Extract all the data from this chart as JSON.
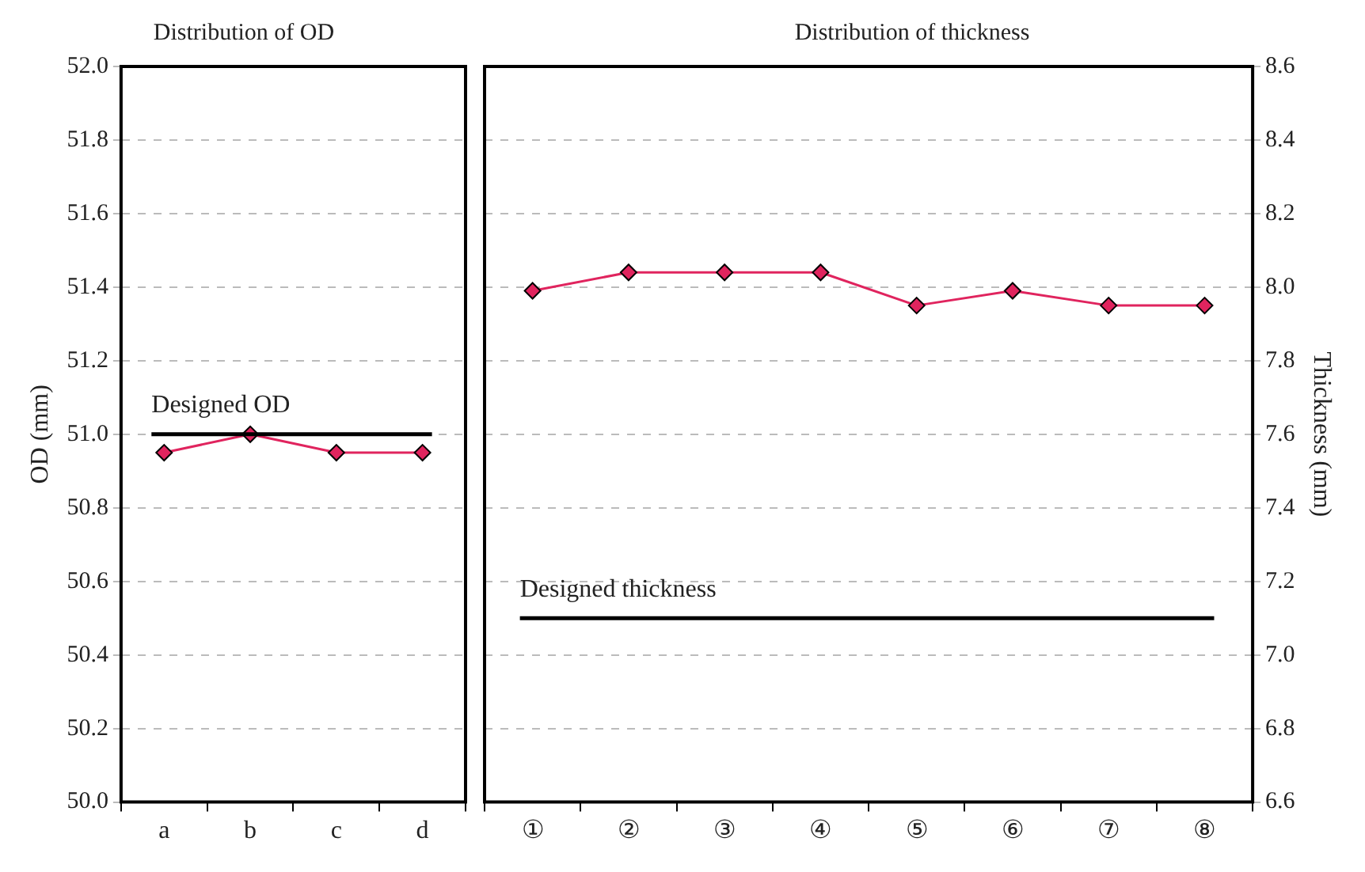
{
  "chart_data": [
    {
      "type": "line",
      "title": "Distribution of OD",
      "ylabel": "OD (mm)",
      "categories": [
        "a",
        "b",
        "c",
        "d"
      ],
      "series": [
        {
          "color": "#e0245e",
          "values": [
            50.95,
            51.0,
            50.95,
            50.95
          ]
        }
      ],
      "ylim": [
        50.0,
        52.0
      ],
      "yticks": [
        {
          "value": 50,
          "label": "50.0"
        },
        50.2,
        50.4,
        50.6,
        50.8,
        {
          "value": 51,
          "label": "51.0"
        },
        51.2,
        51.4,
        51.6,
        51.8,
        {
          "value": 52,
          "label": "52.0"
        }
      ],
      "grid": "y",
      "marker": "diamond",
      "line_style": "solid",
      "ref_lines": [
        {
          "axis": "y",
          "value": 51.0,
          "label": "Designed OD",
          "color": "#000000"
        }
      ]
    },
    {
      "type": "line",
      "title": "Distribution of thickness",
      "y2label": "Thickness (mm)",
      "categories": [
        "①",
        "②",
        "③",
        "④",
        "⑤",
        "⑥",
        "⑦",
        "⑧"
      ],
      "series": [
        {
          "color": "#e0245e",
          "axis": "y2",
          "values": [
            7.99,
            8.04,
            8.04,
            8.04,
            7.95,
            7.99,
            7.95,
            7.95
          ]
        }
      ],
      "y2lim": [
        6.6,
        8.6
      ],
      "y2ticks": [
        6.6,
        6.8,
        {
          "value": 7,
          "label": "7.0"
        },
        7.2,
        7.4,
        7.6,
        7.8,
        {
          "value": 8,
          "label": "8.0"
        },
        8.2,
        8.4,
        8.6
      ],
      "grid": "y",
      "marker": "diamond",
      "line_style": "solid",
      "ref_lines": [
        {
          "axis": "y2",
          "value": 7.1,
          "label": "Designed thickness",
          "color": "#000000"
        }
      ]
    }
  ]
}
